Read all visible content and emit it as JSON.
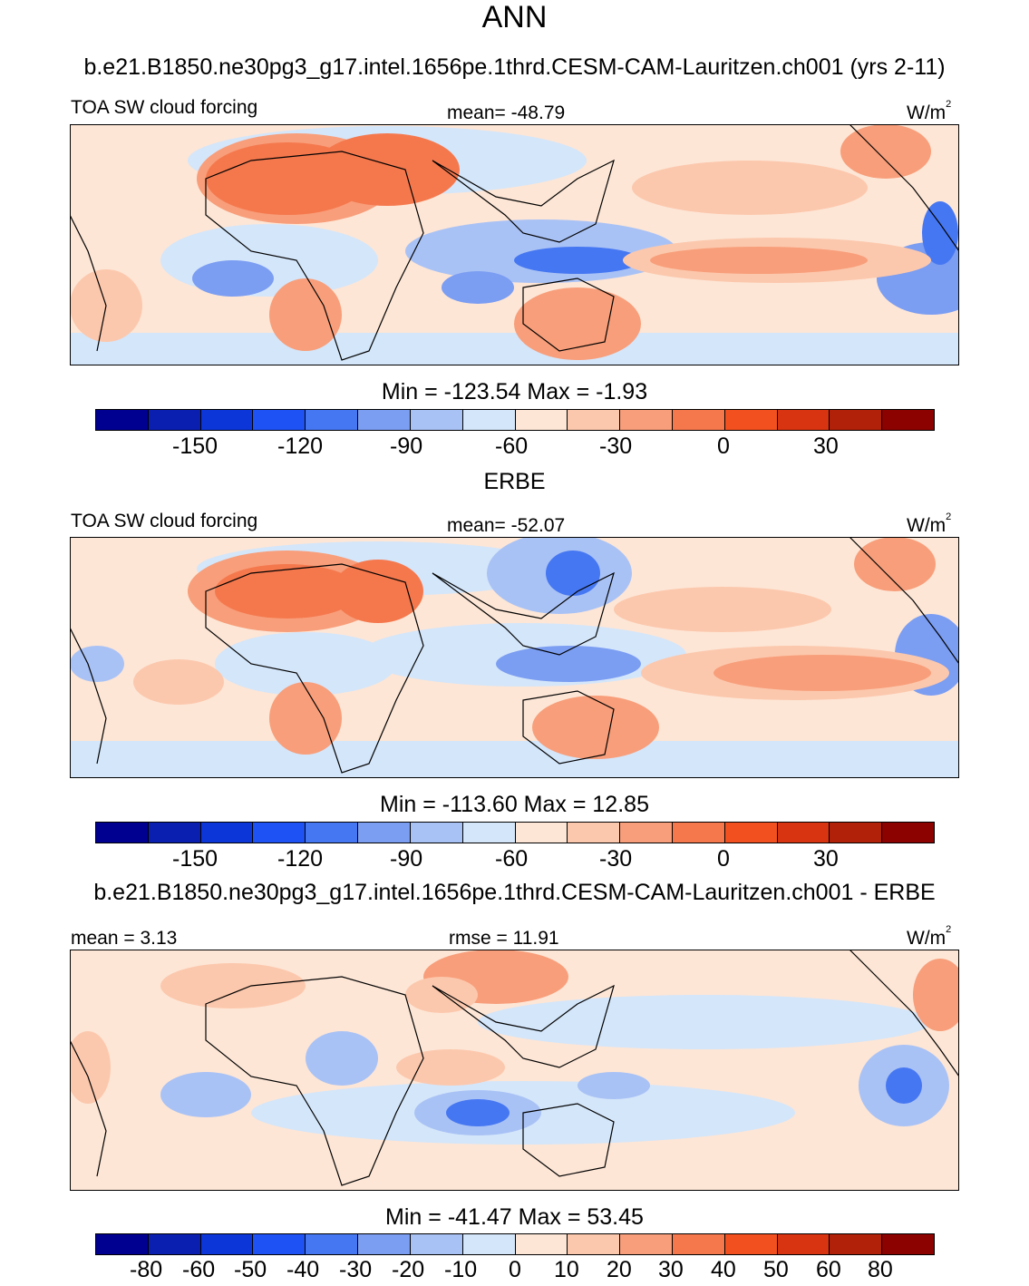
{
  "figure_title": "ANN",
  "colors": [
    "#000090",
    "#0a1fb0",
    "#0d36d8",
    "#1f52f5",
    "#4677f2",
    "#7b9df2",
    "#a9c2f5",
    "#d4e6fa",
    "#fde6d6",
    "#fcc8ad",
    "#f89e7a",
    "#f5784d",
    "#f2501f",
    "#d93411",
    "#b12008",
    "#8b0200"
  ],
  "panels": [
    {
      "name": "model",
      "header": "b.e21.B1850.ne30pg3_g17.intel.1656pe.1thrd.CESM-CAM-Lauritzen.ch001 (yrs 2-11)",
      "left_label": "TOA SW cloud forcing",
      "center_label": "mean= -48.79",
      "units": "W/m",
      "units_sup": "2",
      "minmax": "Min = -123.54 Max =  -1.93",
      "ticks": [
        "-150",
        "-120",
        "-90",
        "-60",
        "-30",
        "0",
        "30"
      ]
    },
    {
      "name": "obs",
      "header": "ERBE",
      "left_label": "TOA SW cloud forcing",
      "center_label": "mean= -52.07",
      "units": "W/m",
      "units_sup": "2",
      "minmax": "Min = -113.60 Max =  12.85",
      "ticks": [
        "-150",
        "-120",
        "-90",
        "-60",
        "-30",
        "0",
        "30"
      ]
    },
    {
      "name": "diff",
      "header": "b.e21.B1850.ne30pg3_g17.intel.1656pe.1thrd.CESM-CAM-Lauritzen.ch001 - ERBE",
      "left_label": "mean =   3.13",
      "center_label": "rmse =  11.91",
      "units": "W/m",
      "units_sup": "2",
      "minmax": "Min = -41.47 Max =  53.45",
      "ticks": [
        "-80",
        "-60",
        "-50",
        "-40",
        "-30",
        "-20",
        "-10",
        "0",
        "10",
        "20",
        "30",
        "40",
        "50",
        "60",
        "80"
      ]
    }
  ],
  "chart_data": [
    {
      "type": "heatmap",
      "title": "TOA SW cloud forcing",
      "subtitle": "b.e21.B1850.ne30pg3_g17.intel.1656pe.1thrd.CESM-CAM-Lauritzen.ch001 (yrs 2-11)",
      "units": "W/m2",
      "mean": -48.79,
      "min": -123.54,
      "max": -1.93,
      "colorbar_levels": [
        -165,
        -150,
        -135,
        -120,
        -105,
        -90,
        -75,
        -60,
        -45,
        -30,
        -15,
        0,
        15,
        30,
        45
      ]
    },
    {
      "type": "heatmap",
      "title": "TOA SW cloud forcing",
      "subtitle": "ERBE",
      "units": "W/m2",
      "mean": -52.07,
      "min": -113.6,
      "max": 12.85,
      "colorbar_levels": [
        -165,
        -150,
        -135,
        -120,
        -105,
        -90,
        -75,
        -60,
        -45,
        -30,
        -15,
        0,
        15,
        30,
        45
      ]
    },
    {
      "type": "heatmap",
      "title": "b.e21.B1850.ne30pg3_g17.intel.1656pe.1thrd.CESM-CAM-Lauritzen.ch001 - ERBE",
      "units": "W/m2",
      "mean": 3.13,
      "rmse": 11.91,
      "min": -41.47,
      "max": 53.45,
      "colorbar_levels": [
        -80,
        -60,
        -50,
        -40,
        -30,
        -20,
        -10,
        0,
        10,
        20,
        30,
        40,
        50,
        60,
        80
      ]
    }
  ]
}
